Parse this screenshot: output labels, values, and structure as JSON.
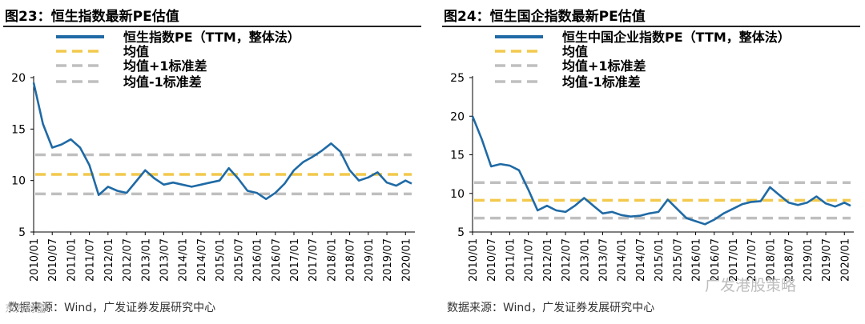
{
  "charts": [
    {
      "figure_title": "图23：恒生指数最新PE估值",
      "source": "数据来源：Wind，广发证券发展研究中心",
      "watermark": "东方财富"
    },
    {
      "figure_title": "图24：恒生国企指数最新PE估值",
      "source": "数据来源：Wind，广发证券发展研究中心",
      "watermark": "广发港股策略"
    }
  ],
  "colors": {
    "pe_line": "#1F6AA5",
    "mean": "#F2C94C",
    "band": "#BFBFBF",
    "rule": "#222222"
  },
  "chart_data": [
    {
      "type": "line",
      "title": "图23：恒生指数最新PE估值",
      "xlabel": "",
      "ylabel": "",
      "ylim": [
        5,
        20
      ],
      "yticks": [
        5,
        10,
        15,
        20
      ],
      "xticks": [
        "2010/01",
        "2010/07",
        "2011/01",
        "2011/07",
        "2012/01",
        "2012/07",
        "2013/01",
        "2013/07",
        "2014/01",
        "2014/07",
        "2015/01",
        "2015/07",
        "2016/01",
        "2016/07",
        "2017/01",
        "2017/07",
        "2018/01",
        "2018/07",
        "2019/01",
        "2019/07",
        "2020/01"
      ],
      "grid": false,
      "legend_position": "top-left",
      "series": [
        {
          "name": "恒生指数PE（TTM，整体法）",
          "style": "line",
          "x": [
            "2010/01",
            "2010/04",
            "2010/07",
            "2010/10",
            "2011/01",
            "2011/04",
            "2011/07",
            "2011/10",
            "2012/01",
            "2012/04",
            "2012/07",
            "2012/10",
            "2013/01",
            "2013/04",
            "2013/07",
            "2013/10",
            "2014/01",
            "2014/04",
            "2014/07",
            "2014/10",
            "2015/01",
            "2015/04",
            "2015/07",
            "2015/10",
            "2016/01",
            "2016/04",
            "2016/07",
            "2016/10",
            "2017/01",
            "2017/04",
            "2017/07",
            "2017/10",
            "2018/01",
            "2018/04",
            "2018/07",
            "2018/10",
            "2019/01",
            "2019/04",
            "2019/07",
            "2019/10",
            "2020/01",
            "2020/03"
          ],
          "values": [
            19.5,
            15.5,
            13.2,
            13.5,
            14.0,
            13.2,
            11.5,
            8.6,
            9.4,
            9.0,
            8.8,
            9.9,
            11.0,
            10.2,
            9.6,
            9.8,
            9.6,
            9.4,
            9.6,
            9.8,
            10.0,
            11.2,
            10.2,
            9.0,
            8.8,
            8.2,
            8.8,
            9.7,
            11.0,
            11.8,
            12.3,
            12.9,
            13.6,
            12.8,
            11.0,
            10.0,
            10.3,
            10.8,
            9.8,
            9.5,
            10.0,
            9.7
          ]
        },
        {
          "name": "均值",
          "style": "dashed",
          "values": [
            10.6
          ]
        },
        {
          "name": "均值+1标准差",
          "style": "dashed",
          "values": [
            12.5
          ]
        },
        {
          "name": "均值-1标准差",
          "style": "dashed",
          "values": [
            8.7
          ]
        }
      ]
    },
    {
      "type": "line",
      "title": "图24：恒生国企指数最新PE估值",
      "xlabel": "",
      "ylabel": "",
      "ylim": [
        5,
        25
      ],
      "yticks": [
        5,
        10,
        15,
        20,
        25
      ],
      "xticks": [
        "2010/01",
        "2010/07",
        "2011/01",
        "2011/07",
        "2012/01",
        "2012/07",
        "2013/01",
        "2013/07",
        "2014/01",
        "2014/07",
        "2015/01",
        "2015/07",
        "2016/01",
        "2016/07",
        "2017/01",
        "2017/07",
        "2018/01",
        "2018/07",
        "2019/01",
        "2019/07",
        "2020/01"
      ],
      "grid": false,
      "legend_position": "top-left",
      "series": [
        {
          "name": "恒生中国企业指数PE（TTM，整体法）",
          "style": "line",
          "x": [
            "2010/01",
            "2010/04",
            "2010/07",
            "2010/10",
            "2011/01",
            "2011/04",
            "2011/07",
            "2011/10",
            "2012/01",
            "2012/04",
            "2012/07",
            "2012/10",
            "2013/01",
            "2013/04",
            "2013/07",
            "2013/10",
            "2014/01",
            "2014/04",
            "2014/07",
            "2014/10",
            "2015/01",
            "2015/04",
            "2015/07",
            "2015/10",
            "2016/01",
            "2016/04",
            "2016/07",
            "2016/10",
            "2017/01",
            "2017/04",
            "2017/07",
            "2017/10",
            "2018/01",
            "2018/04",
            "2018/07",
            "2018/10",
            "2019/01",
            "2019/04",
            "2019/07",
            "2019/10",
            "2020/01",
            "2020/03"
          ],
          "values": [
            20.0,
            17.0,
            13.5,
            13.8,
            13.6,
            13.0,
            10.5,
            7.8,
            8.4,
            7.8,
            7.6,
            8.4,
            9.4,
            8.4,
            7.4,
            7.6,
            7.2,
            7.0,
            7.1,
            7.4,
            7.6,
            9.2,
            8.0,
            6.8,
            6.4,
            6.0,
            6.6,
            7.4,
            8.0,
            8.6,
            8.9,
            9.0,
            10.8,
            9.8,
            8.8,
            8.5,
            8.8,
            9.6,
            8.7,
            8.3,
            8.8,
            8.4
          ]
        },
        {
          "name": "均值",
          "style": "dashed",
          "values": [
            9.1
          ]
        },
        {
          "name": "均值+1标准差",
          "style": "dashed",
          "values": [
            11.4
          ]
        },
        {
          "name": "均值-1标准差",
          "style": "dashed",
          "values": [
            6.8
          ]
        }
      ]
    }
  ]
}
